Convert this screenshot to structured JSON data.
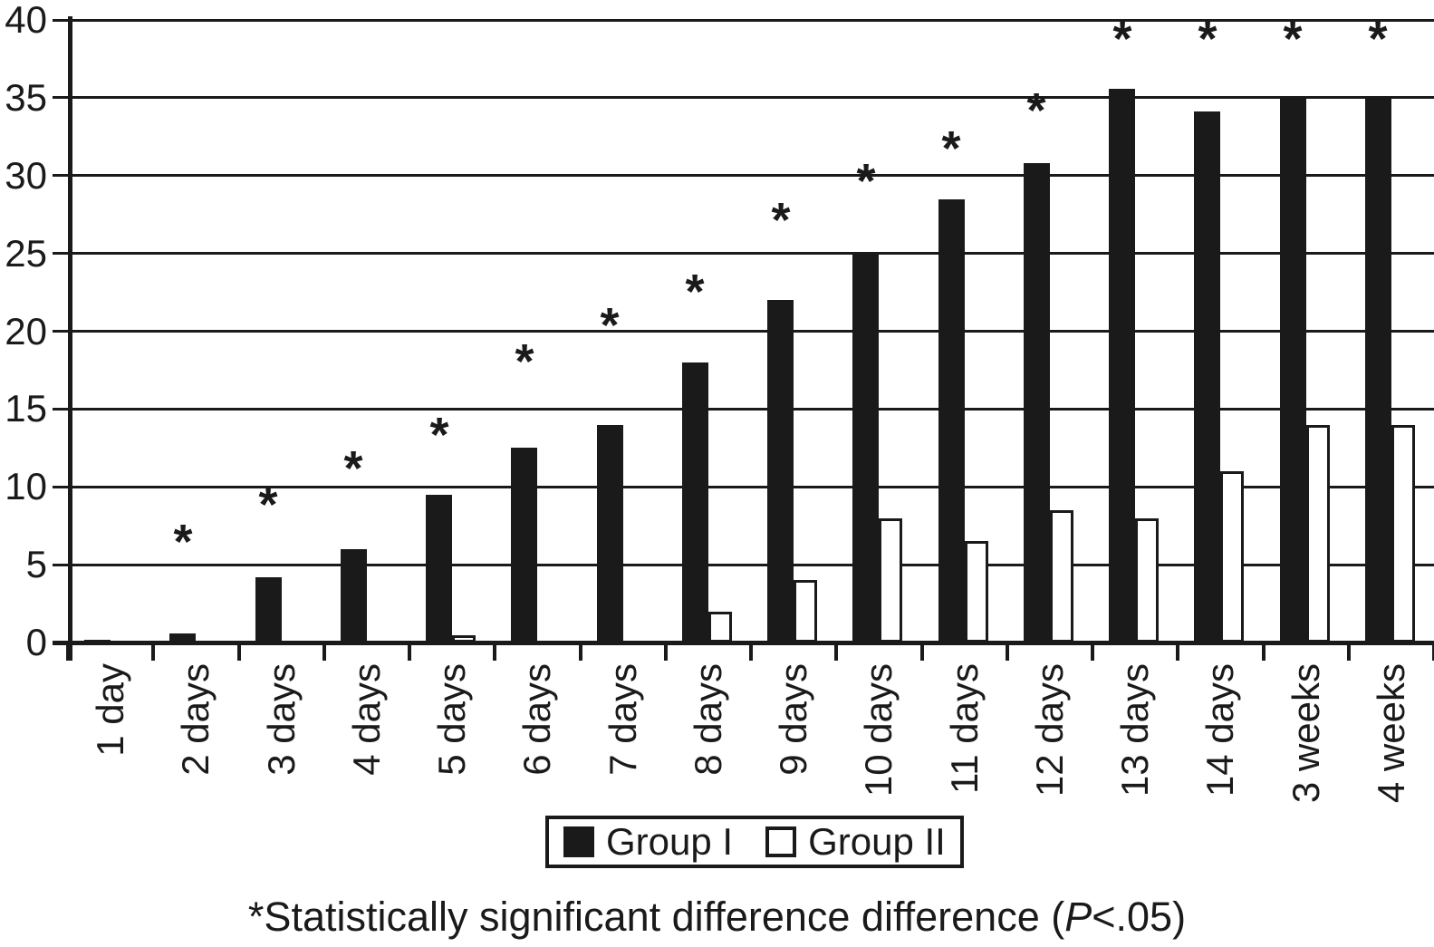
{
  "chart_data": {
    "type": "bar",
    "title": "",
    "xlabel": "",
    "ylabel": "",
    "categories": [
      "1 day",
      "2 days",
      "3 days",
      "4 days",
      "5 days",
      "6 days",
      "7 days",
      "8 days",
      "9 days",
      "10 days",
      "11 days",
      "12 days",
      "13 days",
      "14 days",
      "3 weeks",
      "4 weeks"
    ],
    "series": [
      {
        "name": "Group I",
        "style": "filled",
        "color": "#1a1a1a",
        "values": [
          0.2,
          0.6,
          4.2,
          6.0,
          9.5,
          12.5,
          14.0,
          18.0,
          22.0,
          25.0,
          28.5,
          30.8,
          35.6,
          34.1,
          35.0,
          35.0
        ]
      },
      {
        "name": "Group II",
        "style": "outline",
        "color": "#ffffff",
        "values": [
          0,
          0,
          0,
          0,
          0.4,
          0,
          0,
          2.0,
          4.0,
          8.0,
          6.5,
          8.5,
          8.0,
          11.0,
          14.0,
          14.0
        ]
      }
    ],
    "significance_marker": "*",
    "significance_y": [
      null,
      7.1,
      9.5,
      11.8,
      14.0,
      18.7,
      21.0,
      23.2,
      27.8,
      30.3,
      32.4,
      34.8,
      39.4,
      39.4,
      39.4,
      39.4
    ],
    "ylim": [
      0,
      40
    ],
    "y_ticks": [
      0,
      5,
      10,
      15,
      20,
      25,
      30,
      35,
      40
    ],
    "grid": "horizontal",
    "legend_position": "bottom"
  },
  "legend": {
    "group1_label": "Group I",
    "group2_label": "Group II"
  },
  "footnote": {
    "prefix": "*Statistically significant difference difference (",
    "italic_p": "P",
    "suffix": "<.05)"
  }
}
